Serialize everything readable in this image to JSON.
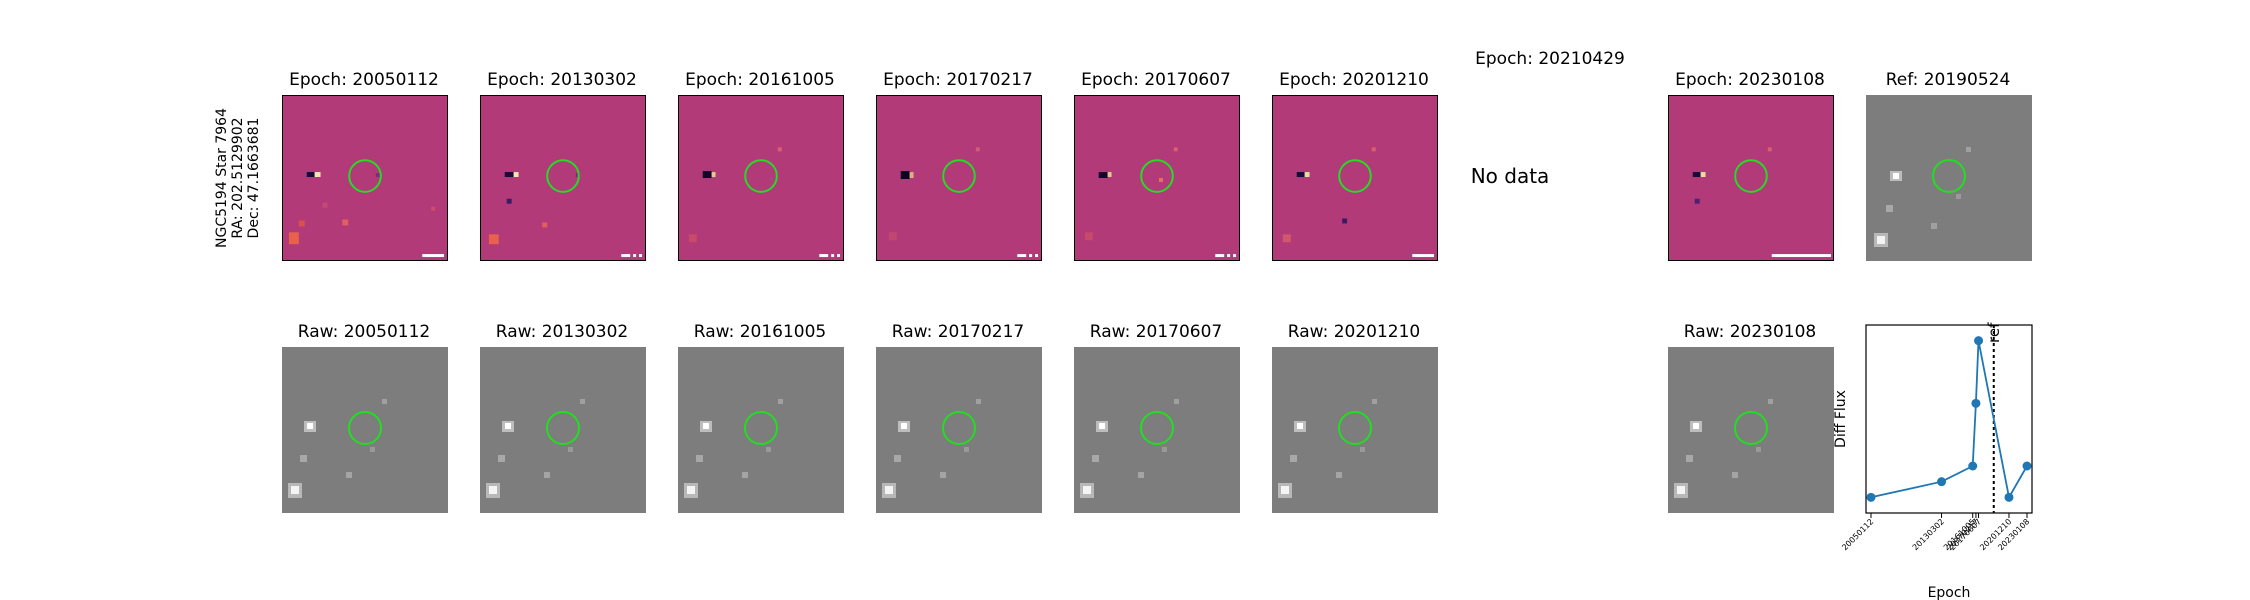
{
  "target": {
    "name": "NGC5194 Star 7964",
    "ra": "RA: 202.5129902",
    "dec": "Dec: 47.1663681"
  },
  "diff_titles": [
    "Epoch: 20050112",
    "Epoch: 20130302",
    "Epoch: 20161005",
    "Epoch: 20170217",
    "Epoch: 20170607",
    "Epoch: 20201210",
    "Epoch: 20210429",
    "Epoch: 20230108"
  ],
  "no_data_text": "No data",
  "ref_title": "Ref: 20190524",
  "raw_titles": [
    "Raw: 20050112",
    "Raw: 20130302",
    "Raw: 20161005",
    "Raw: 20170217",
    "Raw: 20170607",
    "Raw: 20201210",
    "Raw: 20230108"
  ],
  "colors": {
    "diff_background": "#b23a78",
    "raw_background": "#7d7d7d",
    "circle": "#22dd22",
    "line": "#1f77b4"
  },
  "chart_data": {
    "type": "line",
    "title": "",
    "xlabel": "Epoch",
    "ylabel": "Diff Flux",
    "x": [
      "20050112",
      "20130302",
      "20161005",
      "20170217",
      "20170607",
      "20201210",
      "20230108"
    ],
    "x_dates": [
      "2005-01-12",
      "2013-03-02",
      "2016-10-05",
      "2017-02-17",
      "2017-06-07",
      "2020-12-10",
      "2023-01-08"
    ],
    "series": [
      {
        "name": "Diff Flux",
        "values": [
          0.0,
          0.1,
          0.2,
          0.6,
          1.0,
          0.0,
          0.2
        ]
      }
    ],
    "reference_line": {
      "label": "ref",
      "position_after_epoch_index": 4.5
    },
    "ylim": [
      -0.1,
      1.1
    ],
    "y_ticks_shown": false
  }
}
